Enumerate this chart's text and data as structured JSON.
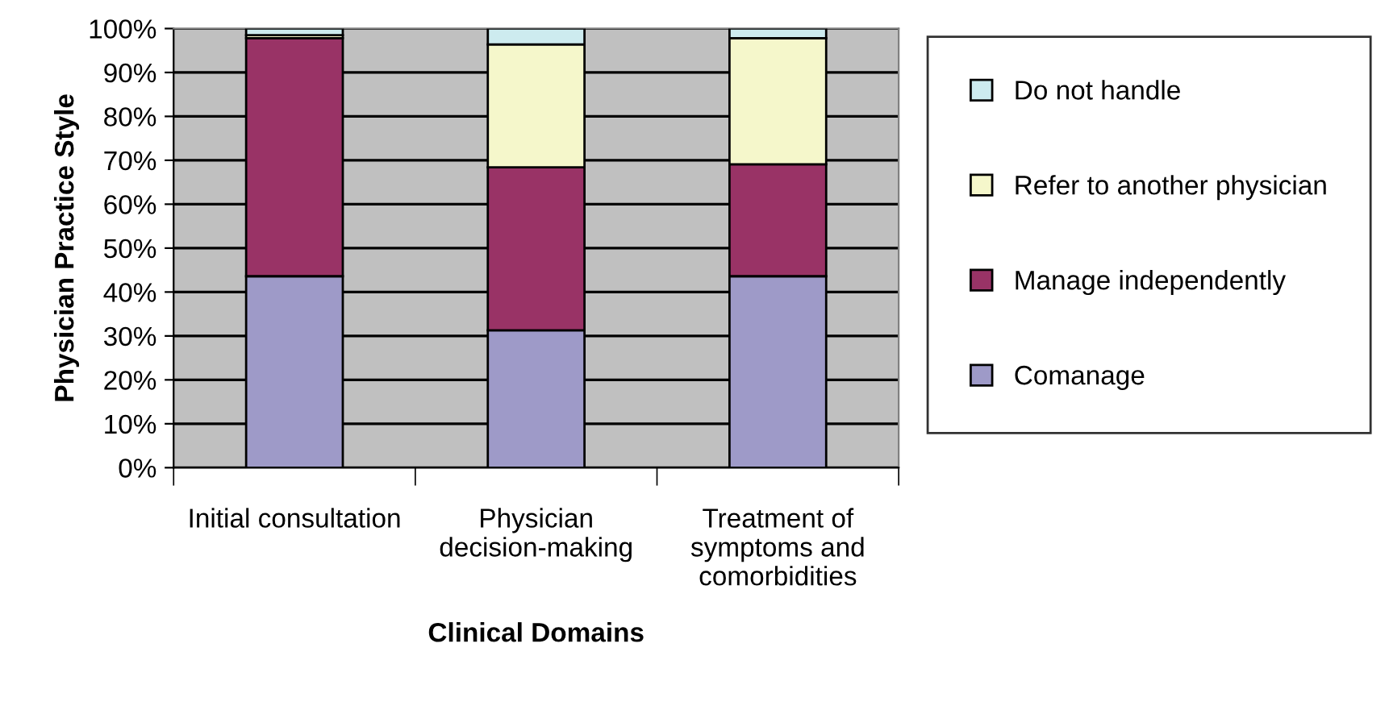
{
  "chart_data": {
    "type": "bar",
    "stacked": true,
    "xlabel": "Clinical Domains",
    "ylabel": "Physician Practice Style",
    "categories": [
      "Initial consultation",
      "Physician\ndecision-making",
      "Treatment of\nsymptoms and\ncomorbidities"
    ],
    "series": [
      {
        "name": "Comanage",
        "color": "#9e9ac8",
        "values": [
          43.6,
          31.3,
          43.6
        ]
      },
      {
        "name": "Manage independently",
        "color": "#993366",
        "values": [
          54.2,
          37.1,
          25.5
        ]
      },
      {
        "name": "Refer to another physician",
        "color": "#f5f7cb",
        "values": [
          0.7,
          28.0,
          28.7
        ]
      },
      {
        "name": "Do not handle",
        "color": "#cdebef",
        "values": [
          1.5,
          3.6,
          2.2
        ]
      }
    ],
    "ylim": [
      0,
      100
    ],
    "yticks": [
      {
        "value": 0,
        "label": "0%"
      },
      {
        "value": 10,
        "label": "10%"
      },
      {
        "value": 20,
        "label": "20%"
      },
      {
        "value": 30,
        "label": "30%"
      },
      {
        "value": 40,
        "label": "40%"
      },
      {
        "value": 50,
        "label": "50%"
      },
      {
        "value": 60,
        "label": "60%"
      },
      {
        "value": 70,
        "label": "70%"
      },
      {
        "value": 80,
        "label": "80%"
      },
      {
        "value": 90,
        "label": "90%"
      },
      {
        "value": 100,
        "label": "100%"
      }
    ],
    "grid": "y",
    "legend": "right"
  }
}
